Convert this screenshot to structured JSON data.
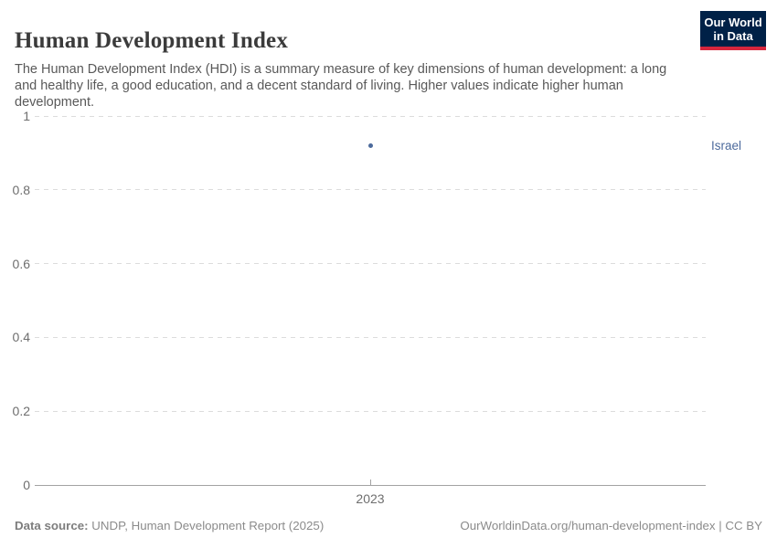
{
  "header": {
    "title": "Human Development Index",
    "subtitle": "The Human Development Index (HDI) is a summary measure of key dimensions of human development: a long and healthy life, a good education, and a decent standard of living. Higher values indicate higher human development.",
    "logo": {
      "line1": "Our World",
      "line2": "in Data",
      "bg_color": "#002147",
      "accent_color": "#d7263d"
    }
  },
  "chart_data": {
    "type": "scatter",
    "title": "Human Development Index",
    "x": [
      2023
    ],
    "xtick_labels": [
      "2023"
    ],
    "series": [
      {
        "name": "Israel",
        "values": [
          0.919
        ],
        "color": "#4c6a9c"
      }
    ],
    "xlabel": "",
    "ylabel": "",
    "ylim": [
      0,
      1
    ],
    "yticks": [
      0,
      0.2,
      0.4,
      0.6,
      0.8,
      1
    ],
    "ytick_labels": [
      "0",
      "0.2",
      "0.4",
      "0.6",
      "0.8",
      "1"
    ],
    "grid": "horizontal-dashed",
    "legend": "entity label at right"
  },
  "footer": {
    "source_label": "Data source:",
    "source_text": " UNDP, Human Development Report (2025)",
    "citation": "OurWorldinData.org/human-development-index | CC BY"
  }
}
